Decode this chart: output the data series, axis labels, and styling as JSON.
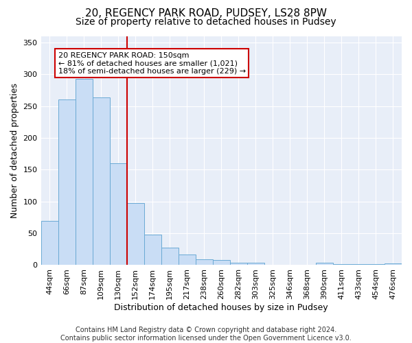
{
  "title_line1": "20, REGENCY PARK ROAD, PUDSEY, LS28 8PW",
  "title_line2": "Size of property relative to detached houses in Pudsey",
  "xlabel": "Distribution of detached houses by size in Pudsey",
  "ylabel": "Number of detached properties",
  "categories": [
    "44sqm",
    "66sqm",
    "87sqm",
    "109sqm",
    "130sqm",
    "152sqm",
    "174sqm",
    "195sqm",
    "217sqm",
    "238sqm",
    "260sqm",
    "282sqm",
    "303sqm",
    "325sqm",
    "346sqm",
    "368sqm",
    "390sqm",
    "411sqm",
    "433sqm",
    "454sqm",
    "476sqm"
  ],
  "values": [
    69,
    260,
    293,
    263,
    160,
    98,
    48,
    27,
    17,
    9,
    8,
    4,
    4,
    1,
    0,
    0,
    4,
    2,
    2,
    2,
    3
  ],
  "bar_color": "#c9ddf5",
  "bar_edge_color": "#6aaad4",
  "vline_index": 5,
  "vline_color": "#cc0000",
  "annotation_line1": "20 REGENCY PARK ROAD: 150sqm",
  "annotation_line2": "← 81% of detached houses are smaller (1,021)",
  "annotation_line3": "18% of semi-detached houses are larger (229) →",
  "annotation_box_color": "white",
  "annotation_box_edge_color": "#cc0000",
  "ylim": [
    0,
    360
  ],
  "yticks": [
    0,
    50,
    100,
    150,
    200,
    250,
    300,
    350
  ],
  "footer_line1": "Contains HM Land Registry data © Crown copyright and database right 2024.",
  "footer_line2": "Contains public sector information licensed under the Open Government Licence v3.0.",
  "background_color": "#ffffff",
  "plot_background_color": "#e8eef8",
  "grid_color": "#ffffff",
  "title_fontsize": 11,
  "subtitle_fontsize": 10,
  "axis_label_fontsize": 9,
  "tick_fontsize": 8,
  "annotation_fontsize": 8,
  "footer_fontsize": 7
}
